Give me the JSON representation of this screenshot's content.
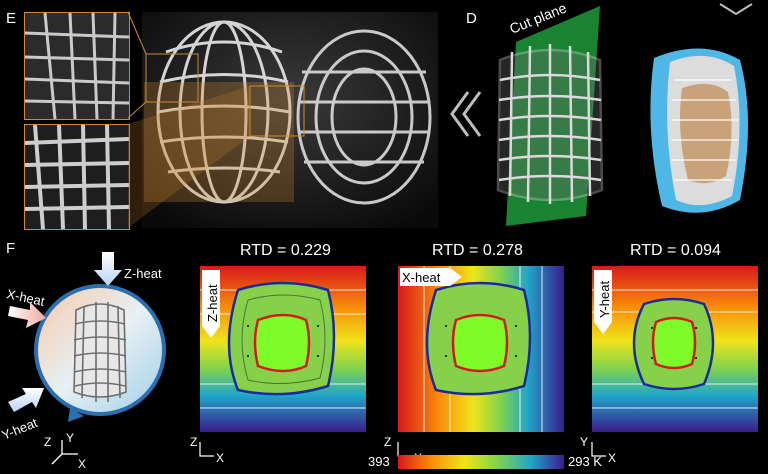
{
  "panels": {
    "e": {
      "letter": "E"
    },
    "d": {
      "letter": "D",
      "cut_plane_label": "Cut plane"
    },
    "f": {
      "letter": "F"
    }
  },
  "heat_labels": {
    "z": "Z-heat",
    "x": "X-heat",
    "y": "Y-heat"
  },
  "axes_mini": {
    "z": "Z",
    "y": "Y",
    "x": "X"
  },
  "maps": [
    {
      "rtd": "RTD = 0.229",
      "heat_label": "Z-heat",
      "axis_v": "Z",
      "axis_h": "X"
    },
    {
      "rtd": "RTD = 0.278",
      "heat_label": "X-heat",
      "axis_v": "Z",
      "axis_h": "X"
    },
    {
      "rtd": "RTD = 0.094",
      "heat_label": "Y-heat",
      "axis_v": "Y",
      "axis_h": "X"
    }
  ],
  "colorbar": {
    "min_label": "393",
    "max_label": "293 K"
  },
  "colors": {
    "highlight_orange": "#d08a2e",
    "cyan_shell": "#4fb7e6",
    "green_plane": "#1f9a3b"
  }
}
